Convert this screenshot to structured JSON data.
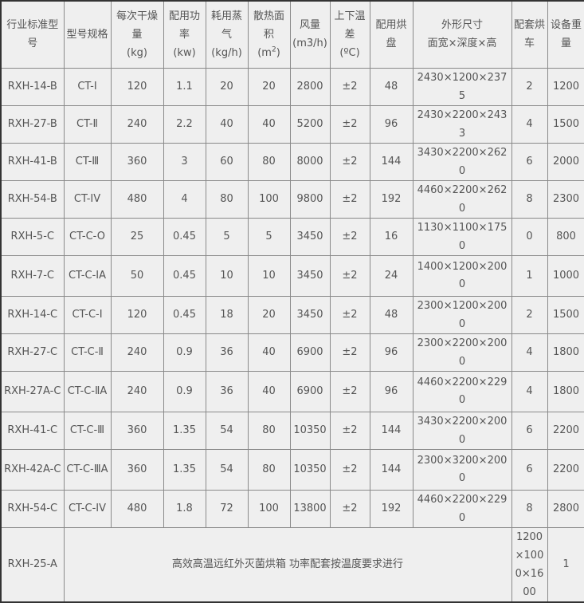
{
  "headers": [
    {
      "text": "行业标准型号"
    },
    {
      "text": "型号规格"
    },
    {
      "text": "每次干燥量",
      "unit": "(kg)"
    },
    {
      "text": "配用功率",
      "unit": "(kw)"
    },
    {
      "text": "耗用蒸气",
      "unit": "(kg/h)"
    },
    {
      "text": "散热面积",
      "unit": "(m",
      "unit_sup": "2",
      "unit_end": ")"
    },
    {
      "text": "风量",
      "unit": "(m3/h)"
    },
    {
      "text": "上下温差",
      "unit": "(ºC)"
    },
    {
      "text": "配用烘盘"
    },
    {
      "text": "外形尺寸",
      "unit": "面宽×深度×高"
    },
    {
      "text": "配套烘车"
    },
    {
      "text": "设备重量"
    }
  ],
  "rows": [
    [
      "RXH-14-B",
      "CT-Ⅰ",
      "120",
      "1.1",
      "20",
      "20",
      "2800",
      "±2",
      "48",
      "2430×1200×2375",
      "2",
      "1200"
    ],
    [
      "RXH-27-B",
      "CT-Ⅱ",
      "240",
      "2.2",
      "40",
      "40",
      "5200",
      "±2",
      "96",
      "2430×2200×2433",
      "4",
      "1500"
    ],
    [
      "RXH-41-B",
      "CT-Ⅲ",
      "360",
      "3",
      "60",
      "80",
      "8000",
      "±2",
      "144",
      "3430×2200×2620",
      "6",
      "2000"
    ],
    [
      "RXH-54-B",
      "CT-IV",
      "480",
      "4",
      "80",
      "100",
      "9800",
      "±2",
      "192",
      "4460×2200×2620",
      "8",
      "2300"
    ],
    [
      "RXH-5-C",
      "CT-C-O",
      "25",
      "0.45",
      "5",
      "5",
      "3450",
      "±2",
      "16",
      "1130×1100×1750",
      "0",
      "800"
    ],
    [
      "RXH-7-C",
      "CT-C-ⅠA",
      "50",
      "0.45",
      "10",
      "10",
      "3450",
      "±2",
      "24",
      "1400×1200×2000",
      "1",
      "1000"
    ],
    [
      "RXH-14-C",
      "CT-C-Ⅰ",
      "120",
      "0.45",
      "18",
      "20",
      "3450",
      "±2",
      "48",
      "2300×1200×2000",
      "2",
      "1500"
    ],
    [
      "RXH-27-C",
      "CT-C-Ⅱ",
      "240",
      "0.9",
      "36",
      "40",
      "6900",
      "±2",
      "96",
      "2300×2200×2000",
      "4",
      "1800"
    ],
    [
      "RXH-27A-C",
      "CT-C-ⅡA",
      "240",
      "0.9",
      "36",
      "40",
      "6900",
      "±2",
      "96",
      "4460×2200×2290",
      "4",
      "1800"
    ],
    [
      "RXH-41-C",
      "CT-C-Ⅲ",
      "360",
      "1.35",
      "54",
      "80",
      "10350",
      "±2",
      "144",
      "3430×2200×2000",
      "6",
      "2200"
    ],
    [
      "RXH-42A-C",
      "CT-C-ⅢA",
      "360",
      "1.35",
      "54",
      "80",
      "10350",
      "±2",
      "144",
      "2300×3200×2000",
      "6",
      "2200"
    ],
    [
      "RXH-54-C",
      "CT-C-IV",
      "480",
      "1.8",
      "72",
      "100",
      "13800",
      "±2",
      "192",
      "4460×2200×2290",
      "8",
      "2800"
    ]
  ],
  "last_row": {
    "model": "RXH-25-A",
    "note": "高效高温远红外灭菌烘箱 功率配套按温度要求进行",
    "dimensions": "1200×1000×1600",
    "carts": "1",
    "weight": "1200"
  }
}
